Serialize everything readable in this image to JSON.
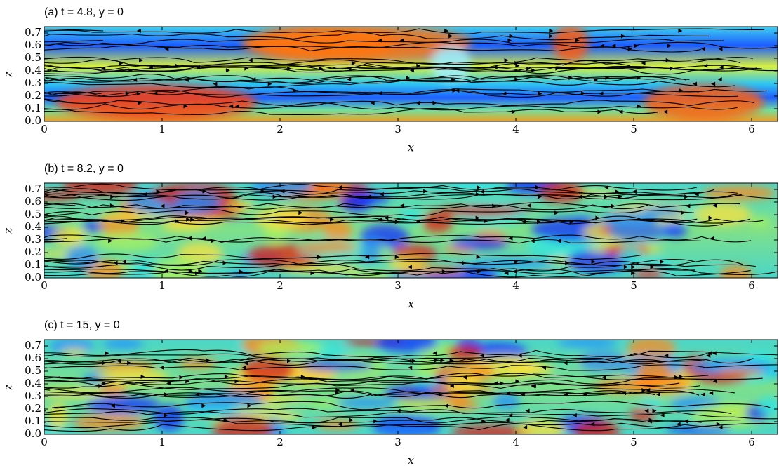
{
  "chart_data": [
    {
      "type": "field",
      "title": "(a) t = 4.8, y = 0",
      "xlabel": "x",
      "ylabel": "z",
      "xlim": [
        0,
        6.22
      ],
      "ylim": [
        0,
        0.75
      ],
      "xticks": [
        0,
        1,
        2,
        3,
        4,
        5,
        6
      ],
      "yticks": [
        {
          "value": 0,
          "label": "0.0"
        },
        0.1,
        0.2,
        0.3,
        0.4,
        0.5,
        0.6,
        0.7
      ]
    },
    {
      "type": "field",
      "title": "(b) t = 8.2, y = 0",
      "xlabel": "x",
      "ylabel": "z",
      "xlim": [
        0,
        6.22
      ],
      "ylim": [
        0,
        0.75
      ],
      "xticks": [
        0,
        1,
        2,
        3,
        4,
        5,
        6
      ],
      "yticks": [
        {
          "value": 0,
          "label": "0.0"
        },
        0.1,
        0.2,
        0.3,
        0.4,
        0.5,
        0.6,
        0.7
      ]
    },
    {
      "type": "field",
      "title": "(c) t = 15, y = 0",
      "xlabel": "x",
      "ylabel": "z",
      "xlim": [
        0,
        6.22
      ],
      "ylim": [
        0,
        0.75
      ],
      "xticks": [
        0,
        1,
        2,
        3,
        4,
        5,
        6
      ],
      "yticks": [
        {
          "value": 0,
          "label": "0.0"
        },
        0.1,
        0.2,
        0.3,
        0.4,
        0.5,
        0.6,
        0.7
      ]
    }
  ]
}
